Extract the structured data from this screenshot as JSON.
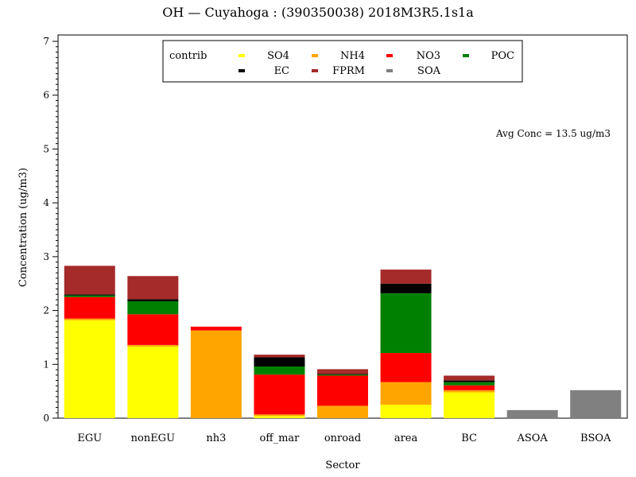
{
  "chart_data": {
    "type": "bar",
    "stacked": true,
    "title": "OH — Cuyahoga : (390350038) 2018M3R5.1s1a",
    "xlabel": "Sector",
    "ylabel": "Concentration (ug/m3)",
    "ylim": [
      0,
      7.1
    ],
    "yticks": [
      0,
      1,
      2,
      3,
      4,
      5,
      6,
      7
    ],
    "annotation": "Avg Conc = 13.5 ug/m3",
    "legend_title": "contrib",
    "legend_position": "top-center",
    "grid": false,
    "categories": [
      "EGU",
      "nonEGU",
      "nh3",
      "off_mar",
      "onroad",
      "area",
      "BC",
      "ASOA",
      "BSOA"
    ],
    "series": [
      {
        "name": "SO4",
        "color": "#ffff00",
        "values": [
          1.82,
          1.33,
          0.0,
          0.04,
          0.0,
          0.25,
          0.48,
          0.0,
          0.0
        ]
      },
      {
        "name": "NH4",
        "color": "#ffa500",
        "values": [
          0.03,
          0.03,
          1.63,
          0.03,
          0.23,
          0.42,
          0.04,
          0.0,
          0.0
        ]
      },
      {
        "name": "NO3",
        "color": "#ff0000",
        "values": [
          0.4,
          0.57,
          0.07,
          0.74,
          0.56,
          0.54,
          0.09,
          0.0,
          0.0
        ]
      },
      {
        "name": "POC",
        "color": "#008000",
        "values": [
          0.03,
          0.24,
          0.0,
          0.15,
          0.02,
          1.11,
          0.06,
          0.0,
          0.0
        ]
      },
      {
        "name": "EC",
        "color": "#000000",
        "values": [
          0.02,
          0.04,
          0.0,
          0.17,
          0.01,
          0.18,
          0.03,
          0.0,
          0.0
        ]
      },
      {
        "name": "FPRM",
        "color": "#a52a2a",
        "values": [
          0.53,
          0.43,
          0.0,
          0.05,
          0.09,
          0.26,
          0.09,
          0.0,
          0.0
        ]
      },
      {
        "name": "SOA",
        "color": "#808080",
        "values": [
          0.0,
          0.0,
          0.0,
          0.0,
          0.0,
          0.0,
          0.0,
          0.15,
          0.52
        ]
      }
    ]
  }
}
